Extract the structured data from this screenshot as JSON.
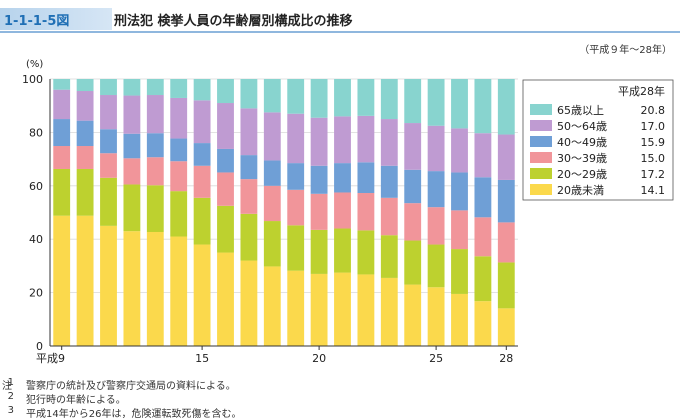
{
  "figure": {
    "number": "1-1-1-5図",
    "title": "刑法犯 検挙人員の年齢層別構成比の推移",
    "period": "（平成９年～28年）"
  },
  "notes": {
    "label": "注",
    "items": [
      {
        "num": "1",
        "text": "警察庁の統計及び警察庁交通局の資料による。"
      },
      {
        "num": "2",
        "text": "犯行時の年齢による。"
      },
      {
        "num": "3",
        "text": "平成14年から26年は，危険運転致死傷を含む。"
      }
    ]
  },
  "chart_data": {
    "type": "bar",
    "stacked": true,
    "ylabel": "(%)",
    "ylim": [
      0,
      100
    ],
    "yticks": [
      0,
      20,
      40,
      60,
      80,
      100
    ],
    "x": [
      9,
      10,
      11,
      12,
      13,
      14,
      15,
      16,
      17,
      18,
      19,
      20,
      21,
      22,
      23,
      24,
      25,
      26,
      27,
      28
    ],
    "xticks": [
      {
        "value": 9,
        "label": "平成9"
      },
      {
        "value": 15,
        "label": "15"
      },
      {
        "value": 20,
        "label": "20"
      },
      {
        "value": 25,
        "label": "25"
      },
      {
        "value": 28,
        "label": "28"
      }
    ],
    "legend_title": "平成28年",
    "series": [
      {
        "name": "20歳未満",
        "color": "#fbd94c",
        "values": [
          48.8,
          48.8,
          45.0,
          43.0,
          42.7,
          41.0,
          38.0,
          35.0,
          32.0,
          29.8,
          28.2,
          27.0,
          27.5,
          26.8,
          25.5,
          23.0,
          22.0,
          19.5,
          16.8,
          14.1
        ],
        "label_value": "14.1"
      },
      {
        "name": "20～29歳",
        "color": "#bdd12f",
        "values": [
          17.5,
          17.5,
          18.0,
          17.5,
          17.5,
          17.0,
          17.5,
          17.5,
          17.5,
          17.0,
          17.0,
          16.5,
          16.5,
          16.5,
          16.0,
          16.5,
          16.0,
          16.8,
          16.8,
          17.2
        ],
        "label_value": "17.2"
      },
      {
        "name": "30～39歳",
        "color": "#f1959a",
        "values": [
          8.6,
          8.6,
          9.2,
          9.8,
          10.5,
          11.2,
          12.0,
          12.5,
          13.0,
          13.2,
          13.3,
          13.5,
          13.5,
          14.0,
          14.0,
          14.0,
          14.0,
          14.5,
          14.6,
          15.0
        ],
        "label_value": "15.0"
      },
      {
        "name": "40～49歳",
        "color": "#6f9fd6",
        "values": [
          10.1,
          9.5,
          9.0,
          9.2,
          9.0,
          8.5,
          8.5,
          8.8,
          9.0,
          9.5,
          10.0,
          10.5,
          11.0,
          11.5,
          12.0,
          12.5,
          13.5,
          14.2,
          15.0,
          15.9
        ],
        "label_value": "15.9"
      },
      {
        "name": "50～64歳",
        "color": "#bf9bd2",
        "values": [
          11.0,
          11.1,
          12.8,
          14.3,
          14.3,
          15.2,
          16.0,
          17.2,
          17.5,
          18.0,
          18.5,
          18.0,
          17.5,
          17.4,
          17.5,
          17.5,
          17.0,
          16.5,
          16.5,
          17.0
        ],
        "label_value": "17.0"
      },
      {
        "name": "65歳以上",
        "color": "#88d4cf",
        "values": [
          4.0,
          4.5,
          6.0,
          6.2,
          6.0,
          7.1,
          8.0,
          9.0,
          11.0,
          12.5,
          13.0,
          14.5,
          14.0,
          13.8,
          15.0,
          16.5,
          17.5,
          18.5,
          20.3,
          20.8
        ],
        "label_value": "20.8"
      }
    ]
  }
}
